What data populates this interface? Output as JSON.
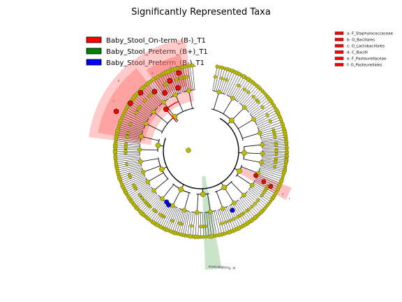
{
  "title": "Significantly Represented Taxa",
  "legend": [
    {
      "label": "Baby_Stool_On-term_(B-)_T1",
      "color": "#ff0000"
    },
    {
      "label": "Baby_Stool_Preterm_(B+)_T1",
      "color": "#008000"
    },
    {
      "label": "Baby_Stool_Preterm_(B-)_T1",
      "color": "#0000ff"
    }
  ],
  "key": [
    {
      "text": "a: F_Staphylococcaceae",
      "color": "#ff0000"
    },
    {
      "text": "b: O_Bacillales",
      "color": "#ff0000"
    },
    {
      "text": "c: O_Lactobacillales",
      "color": "#ff0000"
    },
    {
      "text": "d: C_Bacilli",
      "color": "#ff0000"
    },
    {
      "text": "e: F_Pasteurellaceae",
      "color": "#ff0000"
    },
    {
      "text": "f: O_Pasteurellales",
      "color": "#ff0000"
    }
  ],
  "sector_tags": {
    "a": "a",
    "b": "b",
    "c": "c",
    "d": "d",
    "e": "e",
    "f": "f",
    "fuso": "p: Fusobacteria"
  },
  "colors": {
    "node": "#bbbb00",
    "node_stroke": "#444400",
    "red_shade": "#ff6666",
    "green_shade": "#66b266",
    "blue_node": "#0000ff",
    "red_node": "#ff0000"
  }
}
